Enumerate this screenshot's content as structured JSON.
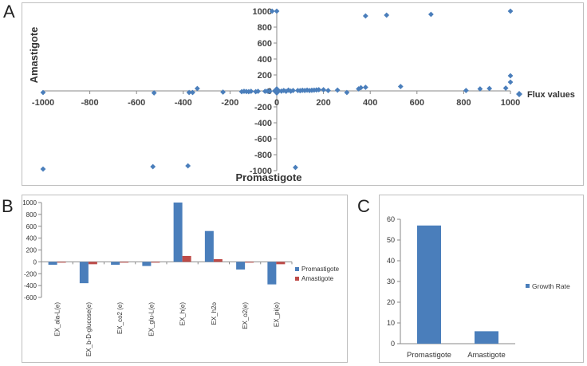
{
  "panels": {
    "a": "A",
    "b": "B",
    "c": "C"
  },
  "chart_data": [
    {
      "id": "A",
      "type": "scatter",
      "title": "",
      "xlabel": "Promastigote",
      "ylabel": "Amastigote",
      "xlim": [
        -1000,
        1000
      ],
      "ylim": [
        -1000,
        1000
      ],
      "xticks": [
        -1000,
        -800,
        -600,
        -400,
        -200,
        0,
        200,
        400,
        600,
        800,
        1000
      ],
      "yticks": [
        1000,
        800,
        600,
        400,
        200,
        0,
        -200,
        -400,
        -600,
        -800,
        -1000
      ],
      "legend": "right",
      "color": "#4a7ebb",
      "series": [
        {
          "name": "Flux values",
          "points": [
            [
              -1000,
              -20
            ],
            [
              -1000,
              -980
            ],
            [
              -530,
              -950
            ],
            [
              -525,
              -25
            ],
            [
              -380,
              -940
            ],
            [
              -375,
              -20
            ],
            [
              -360,
              -20
            ],
            [
              -340,
              30
            ],
            [
              -230,
              -15
            ],
            [
              -150,
              -10
            ],
            [
              -140,
              -5
            ],
            [
              -130,
              -8
            ],
            [
              -120,
              -10
            ],
            [
              -110,
              -5
            ],
            [
              -90,
              -10
            ],
            [
              -80,
              -5
            ],
            [
              -50,
              -5
            ],
            [
              -40,
              -3
            ],
            [
              -30,
              -5
            ],
            [
              -20,
              1000
            ],
            [
              0,
              1000
            ],
            [
              0,
              0
            ],
            [
              20,
              -3
            ],
            [
              30,
              5
            ],
            [
              40,
              -5
            ],
            [
              50,
              10
            ],
            [
              60,
              -3
            ],
            [
              70,
              5
            ],
            [
              80,
              -960
            ],
            [
              90,
              5
            ],
            [
              100,
              3
            ],
            [
              110,
              8
            ],
            [
              120,
              5
            ],
            [
              130,
              10
            ],
            [
              140,
              5
            ],
            [
              150,
              8
            ],
            [
              160,
              10
            ],
            [
              170,
              12
            ],
            [
              180,
              15
            ],
            [
              200,
              15
            ],
            [
              220,
              5
            ],
            [
              260,
              10
            ],
            [
              300,
              -20
            ],
            [
              350,
              25
            ],
            [
              360,
              40
            ],
            [
              380,
              940
            ],
            [
              380,
              45
            ],
            [
              470,
              950
            ],
            [
              530,
              55
            ],
            [
              660,
              960
            ],
            [
              810,
              5
            ],
            [
              870,
              25
            ],
            [
              910,
              30
            ],
            [
              980,
              35
            ],
            [
              1000,
              1000
            ],
            [
              1000,
              110
            ],
            [
              1000,
              190
            ]
          ]
        }
      ]
    },
    {
      "id": "B",
      "type": "bar",
      "categories": [
        "EX_ala-L(e)",
        "EX_b-D-glucose(e)",
        "EX_co2 (e)",
        "EX_glu-L(e)",
        "EX_h(e)",
        "EX_h2o",
        "EX_o2(e)",
        "EX_pi(e)"
      ],
      "series": [
        {
          "name": "Promastigote",
          "color": "#4a7ebb",
          "values": [
            -50,
            -360,
            -50,
            -70,
            1000,
            520,
            -130,
            -380
          ]
        },
        {
          "name": "Amastigote",
          "color": "#be4b48",
          "values": [
            -5,
            -40,
            -10,
            -5,
            100,
            45,
            -10,
            -40
          ]
        }
      ],
      "ylim": [
        -600,
        1000
      ],
      "yticks": [
        1000,
        800,
        600,
        400,
        200,
        0,
        -200,
        -400,
        -600
      ],
      "legend": "right"
    },
    {
      "id": "C",
      "type": "bar",
      "categories": [
        "Promastigote",
        "Amastigote"
      ],
      "series": [
        {
          "name": "Growth Rate",
          "color": "#4a7ebb",
          "values": [
            57,
            6
          ]
        }
      ],
      "ylim": [
        0,
        60
      ],
      "yticks": [
        60,
        50,
        40,
        30,
        20,
        10,
        0
      ],
      "legend": "right"
    }
  ]
}
